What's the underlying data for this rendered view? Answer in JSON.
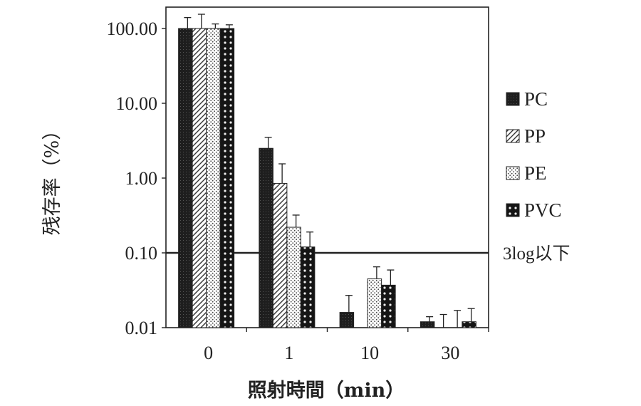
{
  "chart_data": {
    "type": "bar",
    "y_scale": "log",
    "ylim": [
      0.01,
      100
    ],
    "yticks": [
      "0.01",
      "0.10",
      "1.00",
      "10.00",
      "100.00"
    ],
    "ytick_values": [
      0.01,
      0.1,
      1,
      10,
      100
    ],
    "xlabel": "照射時間（min）",
    "ylabel": "残存率（%）",
    "categories": [
      "0",
      "1",
      "10",
      "30"
    ],
    "series": [
      {
        "name": "PC",
        "values": [
          100,
          2.5,
          0.016,
          0.012
        ],
        "errors": [
          40,
          1.0,
          0.011,
          0.002
        ]
      },
      {
        "name": "PP",
        "values": [
          100,
          0.85,
          0.01,
          0.01
        ],
        "errors": [
          55,
          0.7,
          0.0,
          0.005
        ]
      },
      {
        "name": "PE",
        "values": [
          100,
          0.22,
          0.045,
          0.01
        ],
        "errors": [
          15,
          0.1,
          0.02,
          0.007
        ]
      },
      {
        "name": "PVC",
        "values": [
          100,
          0.12,
          0.037,
          0.012
        ],
        "errors": [
          12,
          0.07,
          0.022,
          0.006
        ]
      }
    ],
    "reference_line": {
      "value": 0.1,
      "label": "3log以下"
    },
    "legend_position": "right",
    "grid": false
  },
  "colors": {
    "PC": "#2a2a2a",
    "PP": "#ffffff",
    "PE": "#ffffff",
    "PVC": "#1a1a1a",
    "axis": "#222222"
  }
}
